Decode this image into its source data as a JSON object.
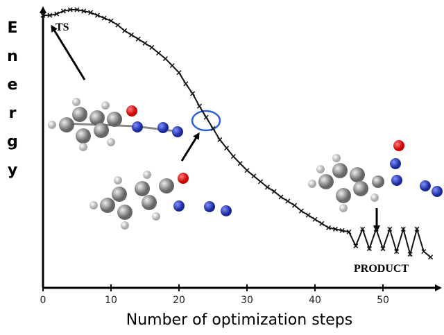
{
  "chart_data": {
    "type": "line",
    "x_label": "Number of optimization steps",
    "y_label": "Energy",
    "annotations": [
      "TS",
      "PRODUCT"
    ],
    "xlim": [
      0,
      58
    ],
    "xticks": [
      0,
      10,
      20,
      30,
      40,
      50
    ],
    "ylim": [
      0,
      100
    ],
    "series": [
      {
        "color": "#111111",
        "x": [
          0,
          1,
          2,
          3,
          4,
          5,
          6,
          7,
          8,
          9,
          10,
          11,
          12,
          13,
          14,
          15,
          16,
          17,
          18,
          19,
          20,
          21,
          22,
          23,
          24,
          25,
          26,
          27,
          28,
          29,
          30,
          31,
          32,
          33,
          34,
          35,
          36,
          37,
          38,
          39,
          40,
          41,
          42,
          43,
          44,
          45,
          46,
          47,
          48,
          49,
          50,
          51,
          52,
          53,
          54,
          55,
          56,
          57
        ],
        "values": [
          97.5,
          97.5,
          98,
          99,
          99.5,
          99.5,
          99,
          98.5,
          97.5,
          96.5,
          95.5,
          94,
          92,
          90.5,
          89,
          87.5,
          86,
          84,
          82,
          79.5,
          77,
          73,
          69.5,
          65,
          61,
          57,
          53,
          50,
          47,
          44.5,
          42,
          40,
          38,
          36,
          34.5,
          32.5,
          31,
          29.5,
          27.5,
          26,
          24.5,
          23,
          21.5,
          21,
          20.5,
          20,
          15,
          21,
          14,
          21,
          14,
          21,
          13,
          21,
          12,
          21,
          13,
          11
        ]
      }
    ]
  }
}
